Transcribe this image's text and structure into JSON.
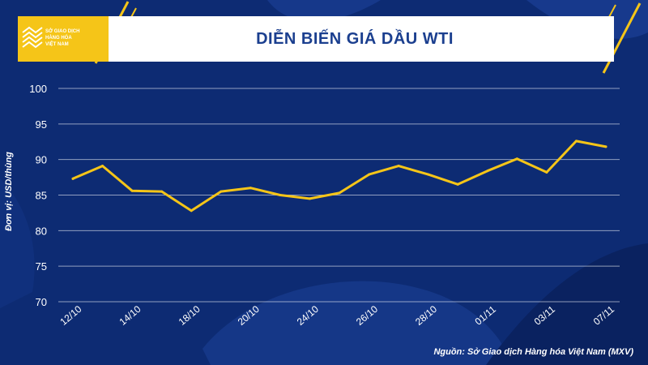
{
  "logo": {
    "line1": "SỞ GIAO DỊCH",
    "line2": "HÀNG HÓA",
    "line3": "VIỆT NAM"
  },
  "colors": {
    "background": "#0d2b73",
    "line": "#f5c518",
    "accent": "#f5c518",
    "title": "#1b3f8f",
    "grid": "#ffffff"
  },
  "source": "Nguồn: Sở Giao dịch Hàng hóa Việt Nam (MXV)",
  "chart_data": {
    "type": "line",
    "title": "DIỄN BIẾN GIÁ DẦU WTI",
    "ylabel": "Đơn vị: USD/thùng",
    "xlabel": "",
    "ylim": [
      70,
      100
    ],
    "yticks": [
      70,
      75,
      80,
      85,
      90,
      95,
      100
    ],
    "grid": true,
    "x": [
      "12/10",
      "13/10",
      "14/10",
      "17/10",
      "18/10",
      "19/10",
      "20/10",
      "21/10",
      "24/10",
      "25/10",
      "26/10",
      "27/10",
      "28/10",
      "31/10",
      "01/11",
      "02/11",
      "03/11",
      "04/11",
      "07/11"
    ],
    "x_tick_labels": [
      "12/10",
      "",
      "14/10",
      "",
      "18/10",
      "",
      "20/10",
      "",
      "24/10",
      "",
      "26/10",
      "",
      "28/10",
      "",
      "01/11",
      "",
      "03/11",
      "",
      "07/11"
    ],
    "series": [
      {
        "values": [
          87.3,
          89.1,
          85.6,
          85.5,
          82.8,
          85.5,
          86.0,
          85.0,
          84.5,
          85.3,
          87.9,
          89.1,
          87.9,
          86.5,
          88.4,
          90.1,
          88.2,
          92.6,
          91.8
        ]
      }
    ]
  }
}
